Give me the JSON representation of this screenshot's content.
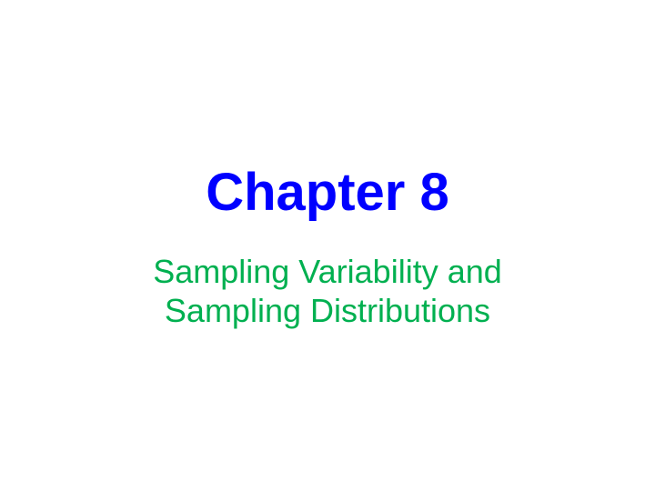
{
  "slide": {
    "title": "Chapter 8",
    "title_color": "#0000FF",
    "title_fontsize": 58,
    "subtitle_line1": "Sampling Variability and",
    "subtitle_line2": "Sampling Distributions",
    "subtitle_color": "#00B050",
    "subtitle_fontsize": 36,
    "background_color": "#ffffff",
    "font_family": "Comic Sans MS"
  }
}
